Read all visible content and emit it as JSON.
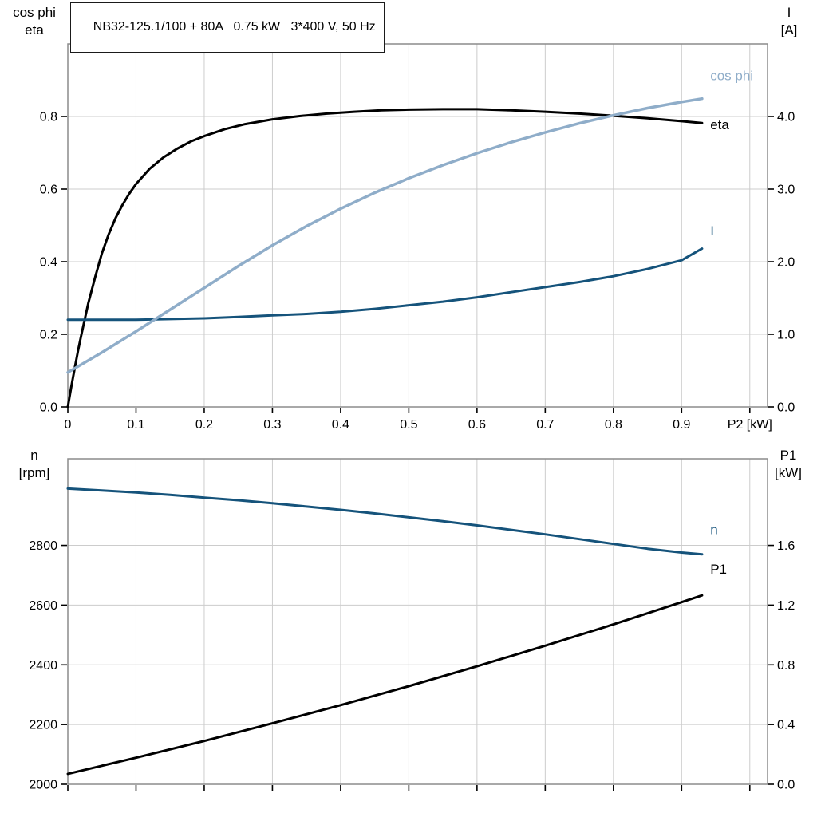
{
  "title": "NB32-125.1/100 + 80A   0.75 kW   3*400 V, 50 Hz",
  "colors": {
    "black": "#000000",
    "light_blue": "#8fadc9",
    "dark_blue": "#15537b",
    "grid": "#cccccc",
    "frame": "#8c8c8c"
  },
  "chart_data": [
    {
      "type": "line",
      "name": "electrical-chart",
      "corner_left": [
        "cos phi",
        "eta"
      ],
      "corner_right": [
        "I",
        "[A]"
      ],
      "x_axis_label": "P2 [kW]",
      "x_range": [
        0,
        1.026
      ],
      "x_grid": [
        0,
        0.1,
        0.2,
        0.3,
        0.4,
        0.5,
        0.6,
        0.7,
        0.8,
        0.9,
        1.0
      ],
      "x_tick_labels": [
        "0",
        "0.1",
        "0.2",
        "0.3",
        "0.4",
        "0.5",
        "0.6",
        "0.7",
        "0.8",
        "0.9"
      ],
      "y_left": {
        "range": [
          0,
          1.0
        ],
        "ticks": [
          0,
          0.2,
          0.4,
          0.6,
          0.8
        ],
        "labels": [
          "0.0",
          "0.2",
          "0.4",
          "0.6",
          "0.8"
        ]
      },
      "y_right": {
        "range": [
          0,
          5.0
        ],
        "ticks": [
          0,
          1,
          2,
          3,
          4
        ],
        "labels": [
          "0.0",
          "1.0",
          "2.0",
          "3.0",
          "4.0"
        ]
      },
      "series": [
        {
          "name": "eta",
          "label": "eta",
          "color_key": "black",
          "scale": "left",
          "width": 3,
          "label_pos": [
            0.942,
            0.765
          ],
          "points": [
            [
              0,
              0
            ],
            [
              0.005,
              0.055
            ],
            [
              0.01,
              0.105
            ],
            [
              0.015,
              0.155
            ],
            [
              0.02,
              0.2
            ],
            [
              0.03,
              0.285
            ],
            [
              0.04,
              0.357
            ],
            [
              0.05,
              0.423
            ],
            [
              0.06,
              0.476
            ],
            [
              0.07,
              0.52
            ],
            [
              0.08,
              0.556
            ],
            [
              0.09,
              0.587
            ],
            [
              0.1,
              0.614
            ],
            [
              0.12,
              0.656
            ],
            [
              0.14,
              0.687
            ],
            [
              0.16,
              0.711
            ],
            [
              0.18,
              0.731
            ],
            [
              0.2,
              0.746
            ],
            [
              0.23,
              0.765
            ],
            [
              0.26,
              0.779
            ],
            [
              0.3,
              0.792
            ],
            [
              0.34,
              0.801
            ],
            [
              0.38,
              0.808
            ],
            [
              0.42,
              0.813
            ],
            [
              0.46,
              0.817
            ],
            [
              0.5,
              0.819
            ],
            [
              0.55,
              0.82
            ],
            [
              0.6,
              0.82
            ],
            [
              0.65,
              0.817
            ],
            [
              0.7,
              0.813
            ],
            [
              0.75,
              0.808
            ],
            [
              0.8,
              0.802
            ],
            [
              0.85,
              0.795
            ],
            [
              0.9,
              0.787
            ],
            [
              0.93,
              0.782
            ]
          ]
        },
        {
          "name": "current",
          "label": "I",
          "color_key": "dark_blue",
          "scale": "right",
          "width": 3,
          "label_pos": [
            0.942,
            2.36
          ],
          "points": [
            [
              0,
              1.2
            ],
            [
              0.05,
              1.2
            ],
            [
              0.1,
              1.2
            ],
            [
              0.15,
              1.21
            ],
            [
              0.2,
              1.22
            ],
            [
              0.25,
              1.24
            ],
            [
              0.3,
              1.26
            ],
            [
              0.35,
              1.28
            ],
            [
              0.4,
              1.31
            ],
            [
              0.45,
              1.35
            ],
            [
              0.5,
              1.4
            ],
            [
              0.55,
              1.45
            ],
            [
              0.6,
              1.51
            ],
            [
              0.65,
              1.58
            ],
            [
              0.7,
              1.65
            ],
            [
              0.75,
              1.72
            ],
            [
              0.8,
              1.8
            ],
            [
              0.85,
              1.9
            ],
            [
              0.9,
              2.02
            ],
            [
              0.93,
              2.18
            ]
          ]
        },
        {
          "name": "cos-phi",
          "label": "cos phi",
          "color_key": "light_blue",
          "scale": "left",
          "width": 3.5,
          "label_pos": [
            0.942,
            0.9
          ],
          "points": [
            [
              0,
              0.095
            ],
            [
              0.05,
              0.15
            ],
            [
              0.1,
              0.208
            ],
            [
              0.15,
              0.268
            ],
            [
              0.2,
              0.328
            ],
            [
              0.25,
              0.388
            ],
            [
              0.3,
              0.445
            ],
            [
              0.35,
              0.498
            ],
            [
              0.4,
              0.546
            ],
            [
              0.45,
              0.59
            ],
            [
              0.5,
              0.63
            ],
            [
              0.55,
              0.666
            ],
            [
              0.6,
              0.699
            ],
            [
              0.65,
              0.729
            ],
            [
              0.7,
              0.756
            ],
            [
              0.75,
              0.781
            ],
            [
              0.8,
              0.803
            ],
            [
              0.85,
              0.823
            ],
            [
              0.9,
              0.84
            ],
            [
              0.93,
              0.849
            ]
          ]
        }
      ]
    },
    {
      "type": "line",
      "name": "mechanical-chart",
      "corner_left": [
        "n",
        "[rpm]"
      ],
      "corner_right": [
        "P1",
        "[kW]"
      ],
      "x_axis_label": "",
      "x_range": [
        0,
        1.026
      ],
      "x_grid": [
        0,
        0.1,
        0.2,
        0.3,
        0.4,
        0.5,
        0.6,
        0.7,
        0.8,
        0.9,
        1.0
      ],
      "x_tick_labels": [],
      "y_left": {
        "range": [
          2000,
          3090
        ],
        "ticks": [
          2000,
          2200,
          2400,
          2600,
          2800
        ],
        "labels": [
          "2000",
          "2200",
          "2400",
          "2600",
          "2800"
        ]
      },
      "y_right": {
        "range": [
          0,
          2.18
        ],
        "ticks": [
          0,
          0.4,
          0.8,
          1.2,
          1.6
        ],
        "labels": [
          "0.0",
          "0.4",
          "0.8",
          "1.2",
          "1.6"
        ]
      },
      "series": [
        {
          "name": "speed",
          "label": "n",
          "color_key": "dark_blue",
          "scale": "left",
          "width": 3,
          "label_pos": [
            0.942,
            2838
          ],
          "points": [
            [
              0,
              2990
            ],
            [
              0.05,
              2984
            ],
            [
              0.1,
              2977
            ],
            [
              0.15,
              2969
            ],
            [
              0.2,
              2960
            ],
            [
              0.25,
              2951
            ],
            [
              0.3,
              2941
            ],
            [
              0.35,
              2930
            ],
            [
              0.4,
              2919
            ],
            [
              0.45,
              2907
            ],
            [
              0.5,
              2894
            ],
            [
              0.55,
              2881
            ],
            [
              0.6,
              2867
            ],
            [
              0.65,
              2852
            ],
            [
              0.7,
              2837
            ],
            [
              0.75,
              2821
            ],
            [
              0.8,
              2805
            ],
            [
              0.85,
              2789
            ],
            [
              0.9,
              2776
            ],
            [
              0.93,
              2770
            ]
          ]
        },
        {
          "name": "input-power",
          "label": "P1",
          "color_key": "black",
          "scale": "right",
          "width": 3,
          "label_pos": [
            0.942,
            1.41
          ],
          "points": [
            [
              0,
              0.07
            ],
            [
              0.1,
              0.178
            ],
            [
              0.2,
              0.29
            ],
            [
              0.3,
              0.408
            ],
            [
              0.4,
              0.53
            ],
            [
              0.5,
              0.657
            ],
            [
              0.6,
              0.79
            ],
            [
              0.7,
              0.928
            ],
            [
              0.8,
              1.071
            ],
            [
              0.9,
              1.22
            ],
            [
              0.93,
              1.265
            ]
          ]
        }
      ]
    }
  ]
}
